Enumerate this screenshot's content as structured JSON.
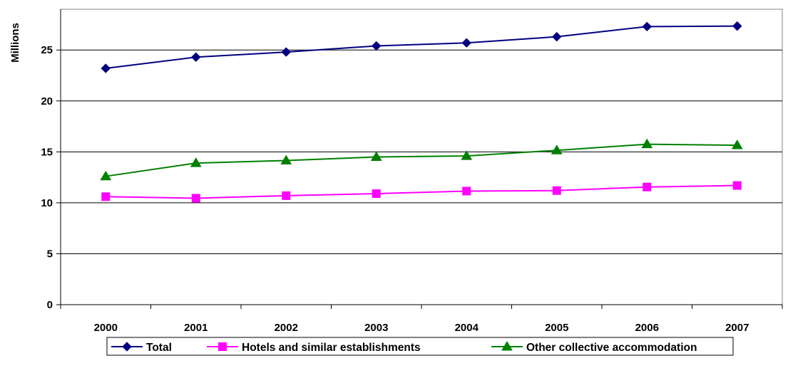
{
  "chart_data": {
    "type": "line",
    "title": "",
    "xlabel": "",
    "ylabel": "Millions",
    "ylim": [
      0,
      29
    ],
    "yticks": [
      0,
      5,
      10,
      15,
      20,
      25
    ],
    "grid": true,
    "legend_position": "bottom",
    "categories": [
      "2000",
      "2001",
      "2002",
      "2003",
      "2004",
      "2005",
      "2006",
      "2007"
    ],
    "series": [
      {
        "name": "Total",
        "color": "#000080",
        "marker": "diamond",
        "values": [
          23.2,
          24.3,
          24.8,
          25.4,
          25.7,
          26.3,
          27.3,
          27.35
        ]
      },
      {
        "name": "Hotels and similar establishments",
        "color": "#ff00ff",
        "marker": "square",
        "values": [
          10.6,
          10.45,
          10.7,
          10.9,
          11.15,
          11.2,
          11.55,
          11.7
        ]
      },
      {
        "name": "Other collective accommodation",
        "color": "#008000",
        "marker": "triangle",
        "values": [
          12.6,
          13.9,
          14.15,
          14.5,
          14.6,
          15.15,
          15.75,
          15.65
        ]
      }
    ]
  }
}
